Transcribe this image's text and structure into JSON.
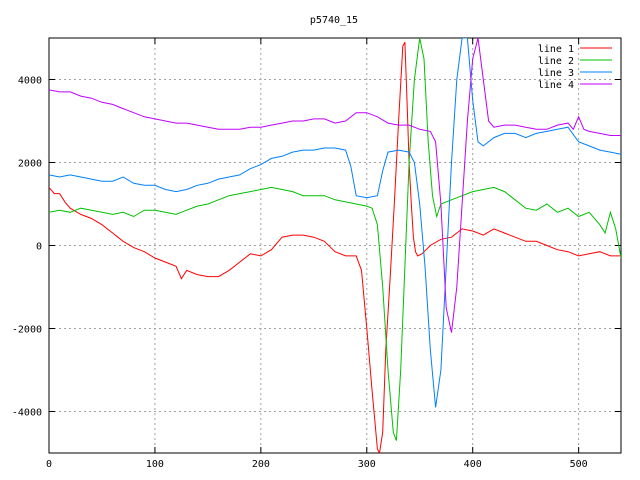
{
  "chart_data": {
    "type": "line",
    "title": "p5740_15",
    "xlabel": "",
    "ylabel": "",
    "xlim": [
      0,
      540
    ],
    "ylim": [
      -5000,
      5000
    ],
    "x_ticks": [
      0,
      100,
      200,
      300,
      400,
      500
    ],
    "y_ticks": [
      -4000,
      -2000,
      0,
      2000,
      4000
    ],
    "x_tick_labels": [
      "0",
      "100",
      "200",
      "300",
      "400",
      "500"
    ],
    "y_tick_labels": [
      "-4000",
      "-2000",
      "0",
      "2000",
      "4000"
    ],
    "grid": true,
    "legend_position": "top-right",
    "series": [
      {
        "name": "line 1",
        "color": "#ff0000",
        "points": [
          [
            0,
            1400
          ],
          [
            5,
            1250
          ],
          [
            10,
            1250
          ],
          [
            15,
            1050
          ],
          [
            20,
            900
          ],
          [
            30,
            750
          ],
          [
            40,
            650
          ],
          [
            50,
            500
          ],
          [
            60,
            300
          ],
          [
            70,
            100
          ],
          [
            80,
            -50
          ],
          [
            90,
            -150
          ],
          [
            100,
            -300
          ],
          [
            110,
            -400
          ],
          [
            120,
            -500
          ],
          [
            125,
            -800
          ],
          [
            130,
            -600
          ],
          [
            140,
            -700
          ],
          [
            150,
            -750
          ],
          [
            160,
            -750
          ],
          [
            170,
            -600
          ],
          [
            180,
            -400
          ],
          [
            190,
            -200
          ],
          [
            200,
            -250
          ],
          [
            210,
            -100
          ],
          [
            220,
            200
          ],
          [
            230,
            250
          ],
          [
            240,
            250
          ],
          [
            250,
            200
          ],
          [
            260,
            100
          ],
          [
            270,
            -150
          ],
          [
            280,
            -250
          ],
          [
            290,
            -250
          ],
          [
            295,
            -600
          ],
          [
            300,
            -2000
          ],
          [
            305,
            -3500
          ],
          [
            310,
            -4900
          ],
          [
            312,
            -5000
          ],
          [
            315,
            -4500
          ],
          [
            318,
            -2500
          ],
          [
            322,
            -800
          ],
          [
            326,
            1000
          ],
          [
            330,
            3000
          ],
          [
            334,
            4800
          ],
          [
            336,
            4900
          ],
          [
            338,
            3500
          ],
          [
            340,
            2000
          ],
          [
            342,
            1000
          ],
          [
            344,
            200
          ],
          [
            346,
            -150
          ],
          [
            348,
            -250
          ],
          [
            352,
            -200
          ],
          [
            360,
            0
          ],
          [
            370,
            150
          ],
          [
            380,
            200
          ],
          [
            390,
            400
          ],
          [
            400,
            350
          ],
          [
            410,
            250
          ],
          [
            420,
            400
          ],
          [
            430,
            300
          ],
          [
            440,
            200
          ],
          [
            450,
            100
          ],
          [
            460,
            100
          ],
          [
            470,
            0
          ],
          [
            480,
            -100
          ],
          [
            490,
            -150
          ],
          [
            500,
            -250
          ],
          [
            510,
            -200
          ],
          [
            520,
            -150
          ],
          [
            530,
            -250
          ],
          [
            540,
            -250
          ]
        ]
      },
      {
        "name": "line 2",
        "color": "#00c000",
        "points": [
          [
            0,
            800
          ],
          [
            10,
            850
          ],
          [
            20,
            800
          ],
          [
            30,
            900
          ],
          [
            40,
            850
          ],
          [
            50,
            800
          ],
          [
            60,
            750
          ],
          [
            70,
            800
          ],
          [
            80,
            700
          ],
          [
            90,
            850
          ],
          [
            100,
            850
          ],
          [
            110,
            800
          ],
          [
            120,
            750
          ],
          [
            130,
            850
          ],
          [
            140,
            950
          ],
          [
            150,
            1000
          ],
          [
            160,
            1100
          ],
          [
            170,
            1200
          ],
          [
            180,
            1250
          ],
          [
            190,
            1300
          ],
          [
            200,
            1350
          ],
          [
            210,
            1400
          ],
          [
            220,
            1350
          ],
          [
            230,
            1300
          ],
          [
            240,
            1200
          ],
          [
            250,
            1200
          ],
          [
            260,
            1200
          ],
          [
            270,
            1100
          ],
          [
            280,
            1050
          ],
          [
            290,
            1000
          ],
          [
            300,
            950
          ],
          [
            305,
            900
          ],
          [
            310,
            500
          ],
          [
            315,
            -1000
          ],
          [
            320,
            -3000
          ],
          [
            325,
            -4500
          ],
          [
            328,
            -4700
          ],
          [
            332,
            -3000
          ],
          [
            336,
            -500
          ],
          [
            340,
            2000
          ],
          [
            345,
            4000
          ],
          [
            350,
            5000
          ],
          [
            354,
            4500
          ],
          [
            358,
            2500
          ],
          [
            362,
            1200
          ],
          [
            366,
            700
          ],
          [
            370,
            1000
          ],
          [
            380,
            1100
          ],
          [
            390,
            1200
          ],
          [
            400,
            1300
          ],
          [
            410,
            1350
          ],
          [
            420,
            1400
          ],
          [
            430,
            1300
          ],
          [
            440,
            1100
          ],
          [
            450,
            900
          ],
          [
            460,
            850
          ],
          [
            470,
            1000
          ],
          [
            480,
            800
          ],
          [
            490,
            900
          ],
          [
            500,
            700
          ],
          [
            510,
            800
          ],
          [
            520,
            500
          ],
          [
            525,
            300
          ],
          [
            530,
            800
          ],
          [
            535,
            400
          ],
          [
            540,
            -300
          ]
        ]
      },
      {
        "name": "line 3",
        "color": "#0080ff",
        "points": [
          [
            0,
            1700
          ],
          [
            10,
            1650
          ],
          [
            20,
            1700
          ],
          [
            30,
            1650
          ],
          [
            40,
            1600
          ],
          [
            50,
            1550
          ],
          [
            60,
            1550
          ],
          [
            70,
            1650
          ],
          [
            80,
            1500
          ],
          [
            90,
            1450
          ],
          [
            100,
            1450
          ],
          [
            110,
            1350
          ],
          [
            120,
            1300
          ],
          [
            130,
            1350
          ],
          [
            140,
            1450
          ],
          [
            150,
            1500
          ],
          [
            160,
            1600
          ],
          [
            170,
            1650
          ],
          [
            180,
            1700
          ],
          [
            190,
            1850
          ],
          [
            200,
            1950
          ],
          [
            210,
            2100
          ],
          [
            220,
            2150
          ],
          [
            230,
            2250
          ],
          [
            240,
            2300
          ],
          [
            250,
            2300
          ],
          [
            260,
            2350
          ],
          [
            270,
            2350
          ],
          [
            280,
            2300
          ],
          [
            285,
            1900
          ],
          [
            290,
            1200
          ],
          [
            300,
            1150
          ],
          [
            310,
            1200
          ],
          [
            315,
            1800
          ],
          [
            320,
            2250
          ],
          [
            330,
            2300
          ],
          [
            340,
            2250
          ],
          [
            345,
            2000
          ],
          [
            350,
            1000
          ],
          [
            355,
            -500
          ],
          [
            360,
            -2500
          ],
          [
            365,
            -3900
          ],
          [
            370,
            -3000
          ],
          [
            375,
            -500
          ],
          [
            380,
            2000
          ],
          [
            385,
            4000
          ],
          [
            390,
            5000
          ],
          [
            395,
            5000
          ],
          [
            400,
            3500
          ],
          [
            405,
            2500
          ],
          [
            410,
            2400
          ],
          [
            420,
            2600
          ],
          [
            430,
            2700
          ],
          [
            440,
            2700
          ],
          [
            450,
            2600
          ],
          [
            460,
            2700
          ],
          [
            470,
            2750
          ],
          [
            480,
            2800
          ],
          [
            490,
            2850
          ],
          [
            500,
            2500
          ],
          [
            510,
            2400
          ],
          [
            520,
            2300
          ],
          [
            530,
            2250
          ],
          [
            540,
            2200
          ]
        ]
      },
      {
        "name": "line 4",
        "color": "#c000ff",
        "points": [
          [
            0,
            3750
          ],
          [
            10,
            3700
          ],
          [
            20,
            3700
          ],
          [
            30,
            3600
          ],
          [
            40,
            3550
          ],
          [
            50,
            3450
          ],
          [
            60,
            3400
          ],
          [
            70,
            3300
          ],
          [
            80,
            3200
          ],
          [
            90,
            3100
          ],
          [
            100,
            3050
          ],
          [
            110,
            3000
          ],
          [
            120,
            2950
          ],
          [
            130,
            2950
          ],
          [
            140,
            2900
          ],
          [
            150,
            2850
          ],
          [
            160,
            2800
          ],
          [
            170,
            2800
          ],
          [
            180,
            2800
          ],
          [
            190,
            2850
          ],
          [
            200,
            2850
          ],
          [
            210,
            2900
          ],
          [
            220,
            2950
          ],
          [
            230,
            3000
          ],
          [
            240,
            3000
          ],
          [
            250,
            3050
          ],
          [
            260,
            3050
          ],
          [
            270,
            2950
          ],
          [
            280,
            3000
          ],
          [
            290,
            3200
          ],
          [
            300,
            3200
          ],
          [
            310,
            3100
          ],
          [
            320,
            2950
          ],
          [
            330,
            2900
          ],
          [
            340,
            2900
          ],
          [
            350,
            2800
          ],
          [
            360,
            2750
          ],
          [
            365,
            2500
          ],
          [
            370,
            1000
          ],
          [
            375,
            -1500
          ],
          [
            380,
            -2100
          ],
          [
            385,
            -1000
          ],
          [
            390,
            1000
          ],
          [
            395,
            3000
          ],
          [
            400,
            4500
          ],
          [
            405,
            5000
          ],
          [
            410,
            4000
          ],
          [
            415,
            3000
          ],
          [
            420,
            2850
          ],
          [
            430,
            2900
          ],
          [
            440,
            2900
          ],
          [
            450,
            2850
          ],
          [
            460,
            2800
          ],
          [
            470,
            2800
          ],
          [
            480,
            2900
          ],
          [
            490,
            2950
          ],
          [
            495,
            2800
          ],
          [
            500,
            3100
          ],
          [
            505,
            2800
          ],
          [
            510,
            2750
          ],
          [
            520,
            2700
          ],
          [
            530,
            2650
          ],
          [
            540,
            2650
          ]
        ]
      }
    ]
  }
}
